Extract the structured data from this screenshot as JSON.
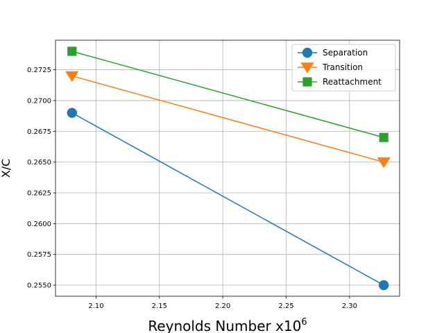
{
  "chart_data": {
    "type": "line",
    "title": "",
    "xlabel": "Reynolds Number x10",
    "xlabel_superscript": "6",
    "ylabel": "X/C",
    "xlim": [
      2.068,
      2.3395
    ],
    "ylim": [
      0.2541,
      0.2749
    ],
    "xticks": [
      2.1,
      2.15,
      2.2,
      2.25,
      2.3
    ],
    "xtick_labels": [
      "2.10",
      "2.15",
      "2.20",
      "2.25",
      "2.30"
    ],
    "yticks": [
      0.255,
      0.2575,
      0.26,
      0.2625,
      0.265,
      0.2675,
      0.27,
      0.2725
    ],
    "ytick_labels": [
      "0.2550",
      "0.2575",
      "0.2600",
      "0.2625",
      "0.2650",
      "0.2675",
      "0.2700",
      "0.2725"
    ],
    "grid": true,
    "legend_position": "top-right",
    "x": [
      2.081,
      2.327
    ],
    "series": [
      {
        "name": "Separation",
        "values": [
          0.269,
          0.255
        ],
        "color": "#1f77b4",
        "marker": "circle"
      },
      {
        "name": "Transition",
        "values": [
          0.272,
          0.265
        ],
        "color": "#ff7f0e",
        "marker": "triangle-down"
      },
      {
        "name": "Reattachment",
        "values": [
          0.274,
          0.267
        ],
        "color": "#2ca02c",
        "marker": "square"
      }
    ]
  }
}
